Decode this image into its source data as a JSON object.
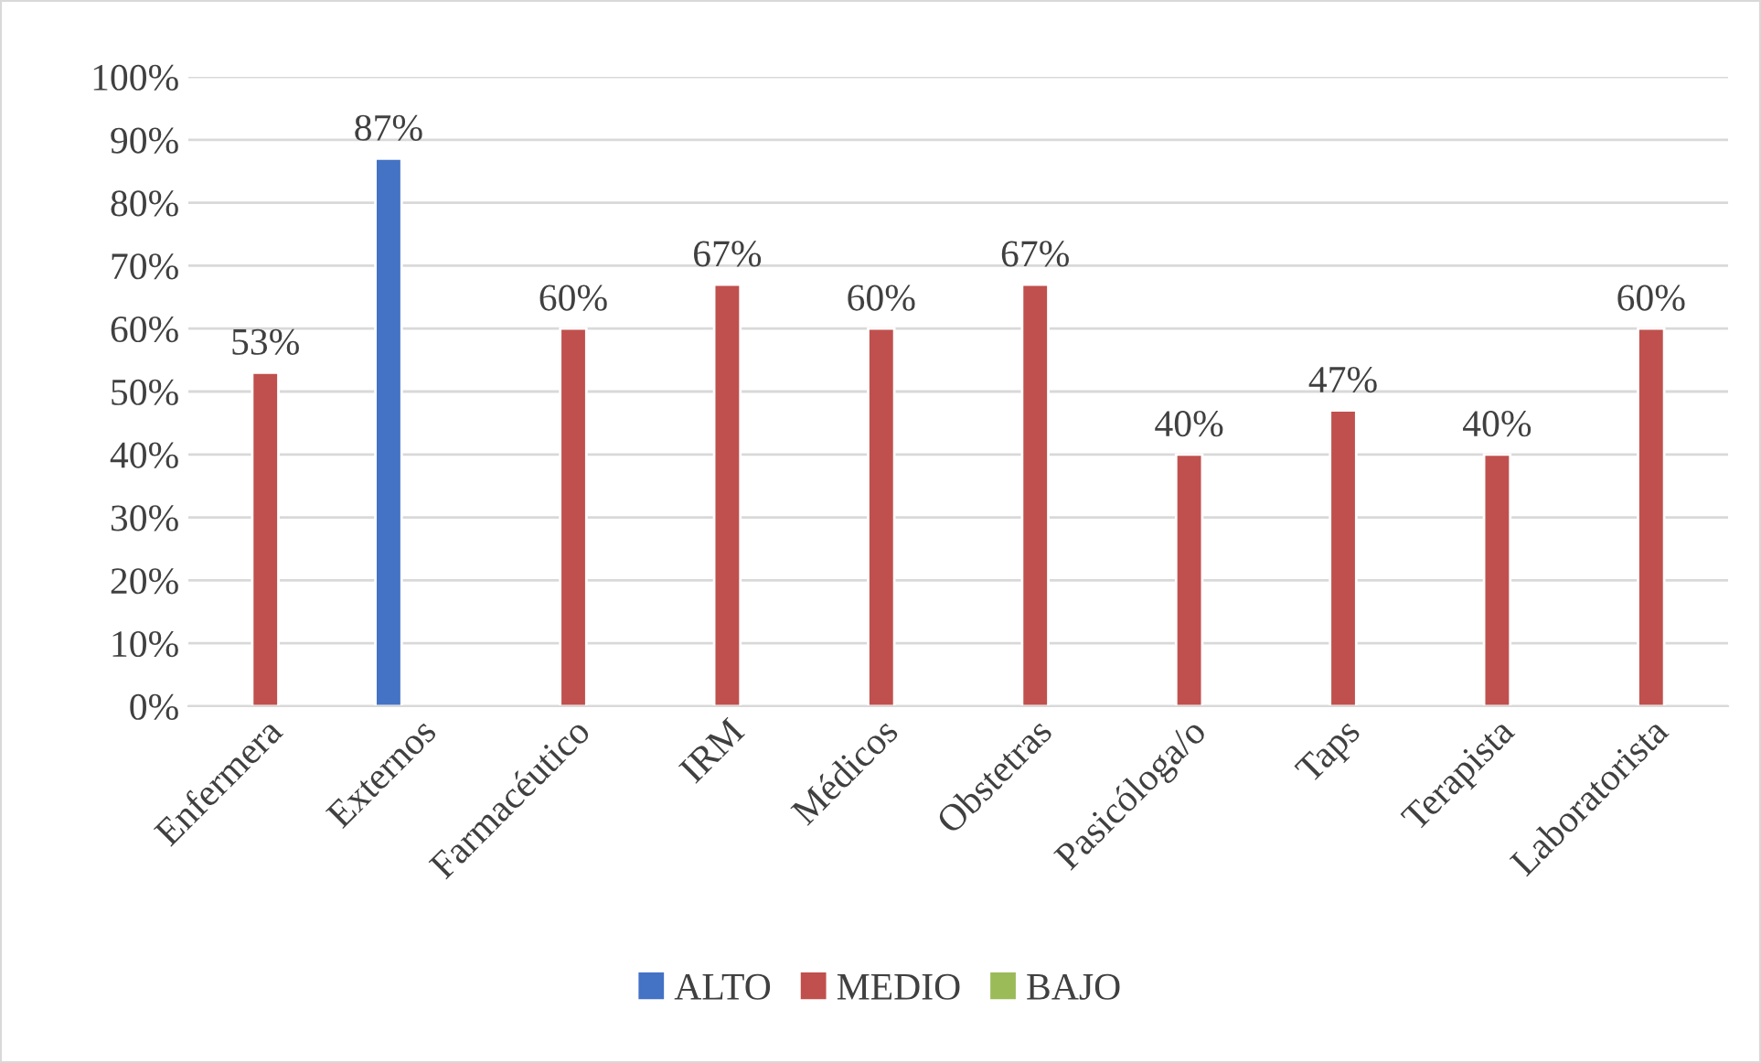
{
  "chart_data": {
    "type": "bar",
    "categories": [
      "Enfermera",
      "Externos",
      "Farmacéutico",
      "IRM",
      "Médicos",
      "Obstetras",
      "Pasicóloga/o",
      "Taps",
      "Terapista",
      "Laboratorista"
    ],
    "series": [
      {
        "name": "ALTO",
        "color": "#4472c4",
        "values": [
          null,
          87,
          null,
          null,
          null,
          null,
          null,
          null,
          null,
          null
        ],
        "value_labels": [
          null,
          "87%",
          null,
          null,
          null,
          null,
          null,
          null,
          null,
          null
        ]
      },
      {
        "name": "MEDIO",
        "color": "#c0504d",
        "values": [
          53,
          null,
          60,
          67,
          60,
          67,
          40,
          47,
          40,
          60
        ],
        "value_labels": [
          "53%",
          null,
          "60%",
          "67%",
          "60%",
          "67%",
          "40%",
          "47%",
          "40%",
          "60%"
        ]
      },
      {
        "name": "BAJO",
        "color": "#9bbb59",
        "values": [
          null,
          null,
          null,
          null,
          null,
          null,
          null,
          null,
          null,
          null
        ],
        "value_labels": [
          null,
          null,
          null,
          null,
          null,
          null,
          null,
          null,
          null,
          null
        ]
      }
    ],
    "ylim": [
      0,
      100
    ],
    "yticks": [
      {
        "value": 0,
        "label": "0%"
      },
      {
        "value": 10,
        "label": "10%"
      },
      {
        "value": 20,
        "label": "20%"
      },
      {
        "value": 30,
        "label": "30%"
      },
      {
        "value": 40,
        "label": "40%"
      },
      {
        "value": 50,
        "label": "50%"
      },
      {
        "value": 60,
        "label": "60%"
      },
      {
        "value": 70,
        "label": "70%"
      },
      {
        "value": 80,
        "label": "80%"
      },
      {
        "value": 90,
        "label": "90%"
      },
      {
        "value": 100,
        "label": "100%"
      }
    ],
    "grid": "y",
    "legend": "bottom"
  }
}
